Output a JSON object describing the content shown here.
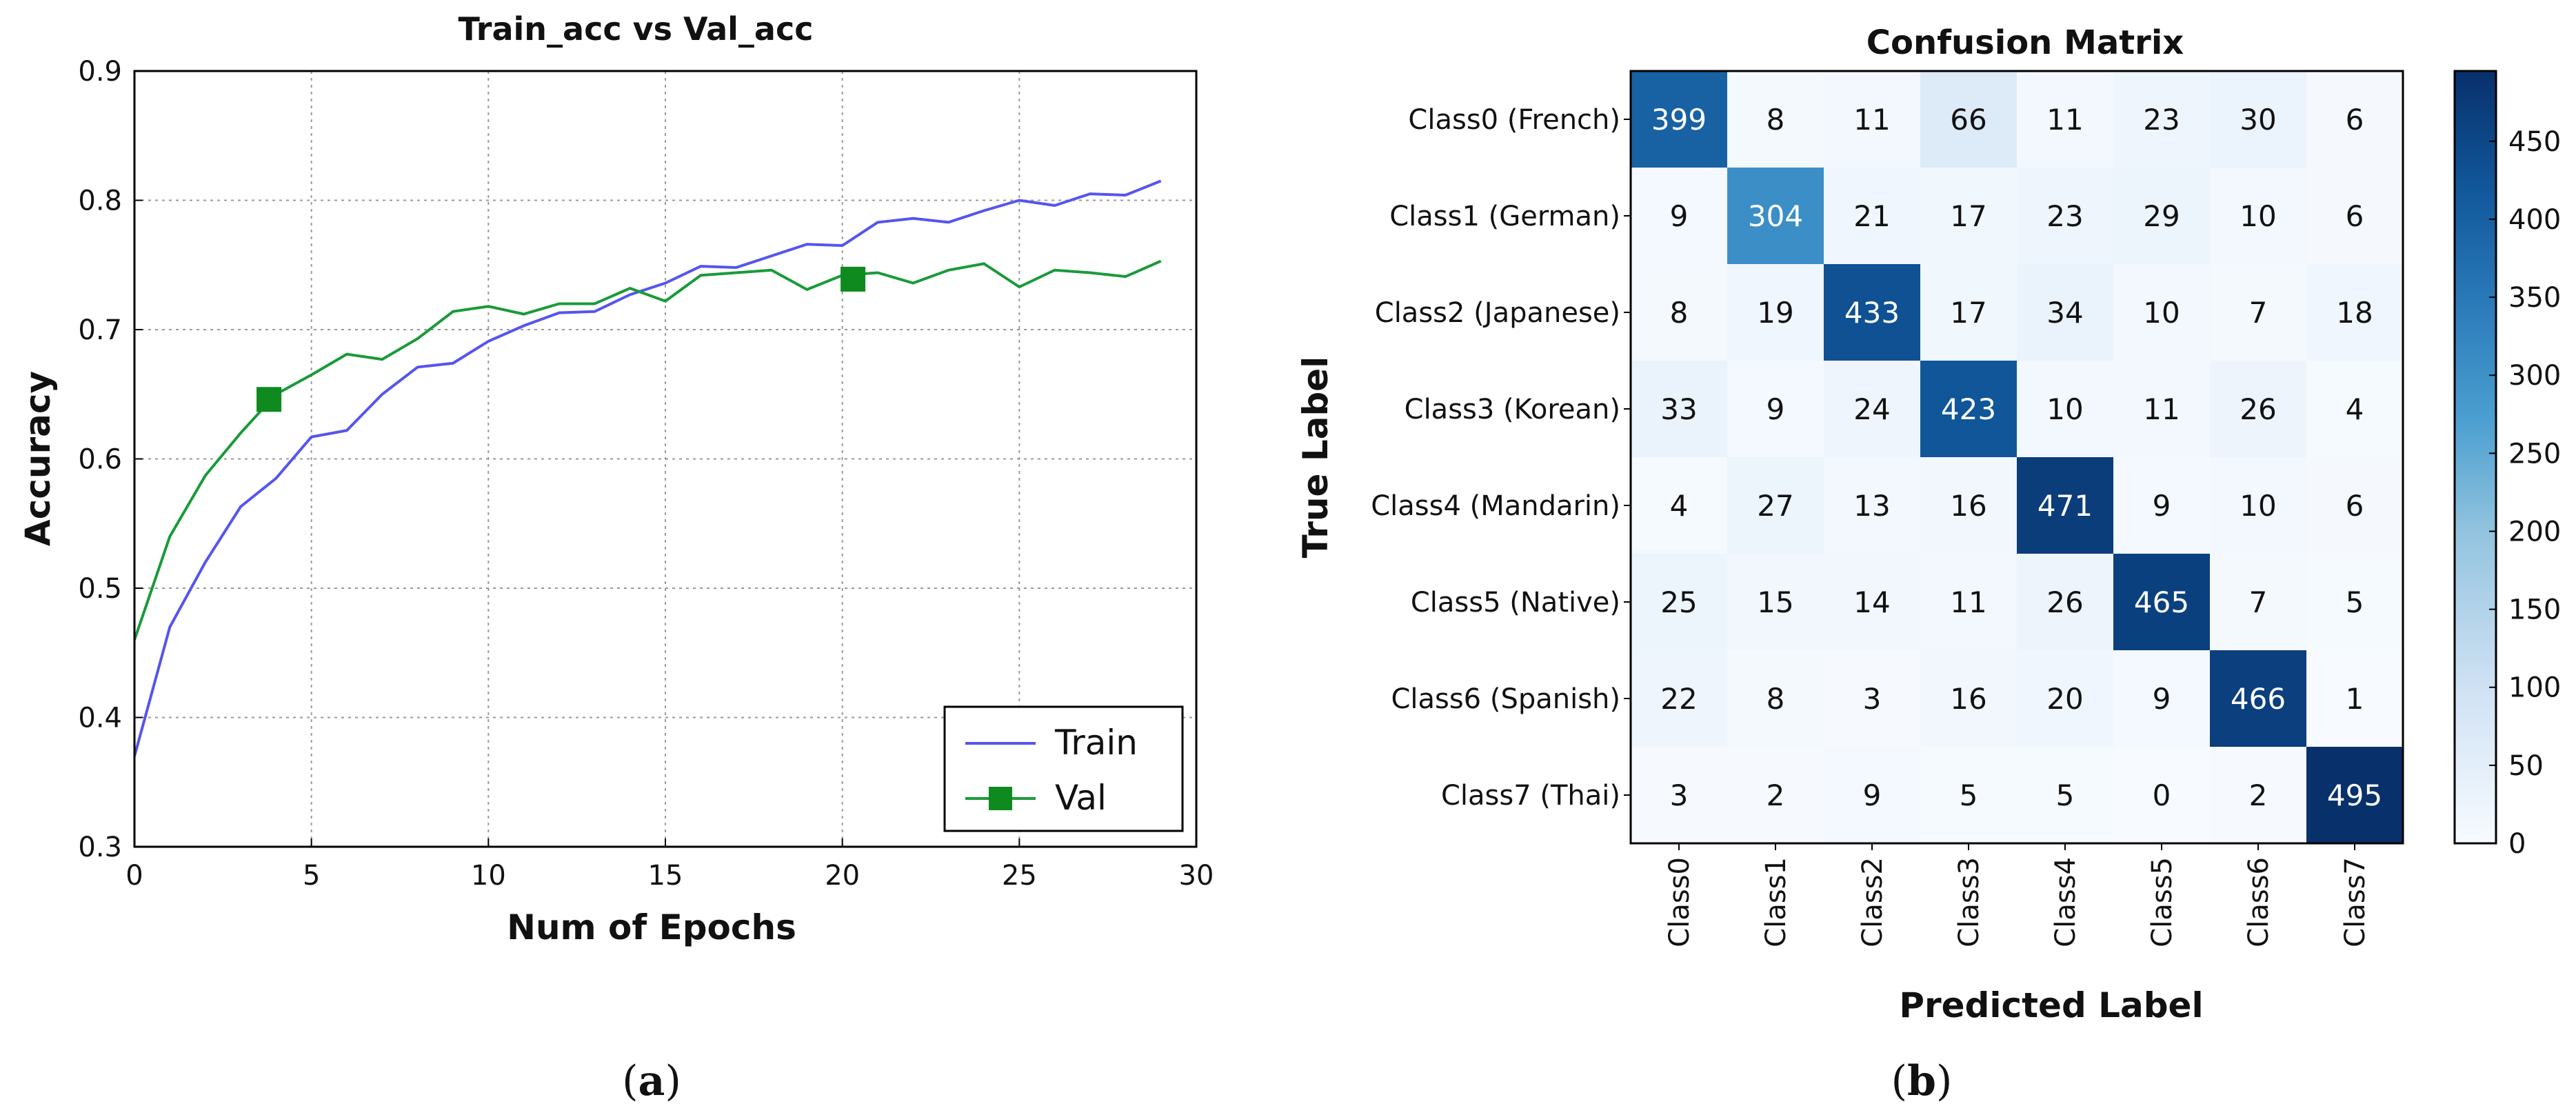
{
  "chart_data": [
    {
      "type": "line",
      "title": "Train_acc vs Val_acc",
      "xlabel": "Num of Epochs",
      "ylabel": "Accuracy",
      "xlim": [
        0,
        30
      ],
      "ylim": [
        0.3,
        0.9
      ],
      "xticks": [
        0,
        5,
        10,
        15,
        20,
        25,
        30
      ],
      "yticks": [
        0.3,
        0.4,
        0.5,
        0.6,
        0.7,
        0.8,
        0.9
      ],
      "grid": true,
      "legend": "bottom-right",
      "x": [
        0,
        1,
        2,
        3,
        4,
        5,
        6,
        7,
        8,
        9,
        10,
        11,
        12,
        13,
        14,
        15,
        16,
        17,
        18,
        19,
        20,
        21,
        22,
        23,
        24,
        25,
        26,
        27,
        28,
        29
      ],
      "series": [
        {
          "name": "Train",
          "color": "#5555ee",
          "marker": "none",
          "values": [
            0.37,
            0.47,
            0.52,
            0.563,
            0.585,
            0.617,
            0.622,
            0.65,
            0.671,
            0.674,
            0.691,
            0.703,
            0.713,
            0.714,
            0.727,
            0.736,
            0.749,
            0.748,
            0.757,
            0.766,
            0.765,
            0.783,
            0.786,
            0.783,
            0.792,
            0.8,
            0.796,
            0.805,
            0.804,
            0.815
          ]
        },
        {
          "name": "Val",
          "color": "#1a9a3a",
          "marker": "square",
          "marker_points": [
            [
              3.8,
              0.646
            ],
            [
              20.3,
              0.739
            ]
          ],
          "values": [
            0.46,
            0.54,
            0.587,
            0.62,
            0.65,
            0.665,
            0.681,
            0.677,
            0.693,
            0.714,
            0.718,
            0.712,
            0.72,
            0.72,
            0.732,
            0.722,
            0.742,
            0.744,
            0.746,
            0.731,
            0.742,
            0.744,
            0.736,
            0.746,
            0.751,
            0.733,
            0.746,
            0.744,
            0.741,
            0.753
          ]
        }
      ],
      "panel_label": "a"
    },
    {
      "type": "heatmap",
      "title": "Confusion Matrix",
      "xlabel": "Predicted Label",
      "ylabel": "True Label",
      "row_labels": [
        "Class0 (French)",
        "Class1 (German)",
        "Class2 (Japanese)",
        "Class3 (Korean)",
        "Class4 (Mandarin)",
        "Class5 (Native)",
        "Class6 (Spanish)",
        "Class7 (Thai)"
      ],
      "col_labels": [
        "Class0",
        "Class1",
        "Class2",
        "Class3",
        "Class4",
        "Class5",
        "Class6",
        "Class7"
      ],
      "matrix": [
        [
          399,
          8,
          11,
          66,
          11,
          23,
          30,
          6
        ],
        [
          9,
          304,
          21,
          17,
          23,
          29,
          10,
          6
        ],
        [
          8,
          19,
          433,
          17,
          34,
          10,
          7,
          18
        ],
        [
          33,
          9,
          24,
          423,
          10,
          11,
          26,
          4
        ],
        [
          4,
          27,
          13,
          16,
          471,
          9,
          10,
          6
        ],
        [
          25,
          15,
          14,
          11,
          26,
          465,
          7,
          5
        ],
        [
          22,
          8,
          3,
          16,
          20,
          9,
          466,
          1
        ],
        [
          3,
          2,
          9,
          5,
          5,
          0,
          2,
          495
        ]
      ],
      "colorbar": {
        "min": 0,
        "max": 495,
        "ticks": [
          0,
          50,
          100,
          150,
          200,
          250,
          300,
          350,
          400,
          450
        ]
      },
      "panel_label": "b"
    }
  ]
}
